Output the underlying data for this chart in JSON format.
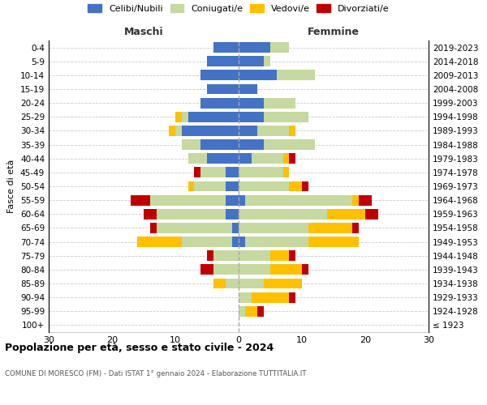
{
  "age_groups": [
    "100+",
    "95-99",
    "90-94",
    "85-89",
    "80-84",
    "75-79",
    "70-74",
    "65-69",
    "60-64",
    "55-59",
    "50-54",
    "45-49",
    "40-44",
    "35-39",
    "30-34",
    "25-29",
    "20-24",
    "15-19",
    "10-14",
    "5-9",
    "0-4"
  ],
  "birth_years": [
    "≤ 1923",
    "1924-1928",
    "1929-1933",
    "1934-1938",
    "1939-1943",
    "1944-1948",
    "1949-1953",
    "1954-1958",
    "1959-1963",
    "1964-1968",
    "1969-1973",
    "1974-1978",
    "1979-1983",
    "1984-1988",
    "1989-1993",
    "1994-1998",
    "1999-2003",
    "2004-2008",
    "2009-2013",
    "2014-2018",
    "2019-2023"
  ],
  "males": {
    "celibi": [
      0,
      0,
      0,
      0,
      0,
      0,
      1,
      1,
      2,
      2,
      2,
      2,
      5,
      6,
      9,
      8,
      6,
      5,
      6,
      5,
      4
    ],
    "coniugati": [
      0,
      0,
      0,
      2,
      4,
      4,
      8,
      12,
      11,
      12,
      5,
      4,
      3,
      3,
      1,
      1,
      0,
      0,
      0,
      0,
      0
    ],
    "vedovi": [
      0,
      0,
      0,
      2,
      0,
      0,
      7,
      0,
      0,
      0,
      1,
      0,
      0,
      0,
      1,
      1,
      0,
      0,
      0,
      0,
      0
    ],
    "divorziati": [
      0,
      0,
      0,
      0,
      2,
      1,
      0,
      1,
      2,
      3,
      0,
      1,
      0,
      0,
      0,
      0,
      0,
      0,
      0,
      0,
      0
    ]
  },
  "females": {
    "nubili": [
      0,
      0,
      0,
      0,
      0,
      0,
      1,
      0,
      0,
      1,
      0,
      0,
      2,
      4,
      3,
      4,
      4,
      3,
      6,
      4,
      5
    ],
    "coniugate": [
      0,
      1,
      2,
      4,
      5,
      5,
      10,
      11,
      14,
      17,
      8,
      7,
      5,
      8,
      5,
      7,
      5,
      0,
      6,
      1,
      3
    ],
    "vedove": [
      0,
      2,
      6,
      6,
      5,
      3,
      8,
      7,
      6,
      1,
      2,
      1,
      1,
      0,
      1,
      0,
      0,
      0,
      0,
      0,
      0
    ],
    "divorziate": [
      0,
      1,
      1,
      0,
      1,
      1,
      0,
      1,
      2,
      2,
      1,
      0,
      1,
      0,
      0,
      0,
      0,
      0,
      0,
      0,
      0
    ]
  },
  "color_celibi": "#4472c4",
  "color_coniugati": "#c5d9a0",
  "color_vedovi": "#ffc000",
  "color_divorziati": "#c00000",
  "title": "Popolazione per età, sesso e stato civile - 2024",
  "subtitle": "COMUNE DI MORESCO (FM) - Dati ISTAT 1° gennaio 2024 - Elaborazione TUTTITALIA.IT",
  "xlabel_left": "Maschi",
  "xlabel_right": "Femmine",
  "ylabel_left": "Fasce di età",
  "xlim": 30,
  "background_color": "#ffffff",
  "grid_color": "#cccccc"
}
